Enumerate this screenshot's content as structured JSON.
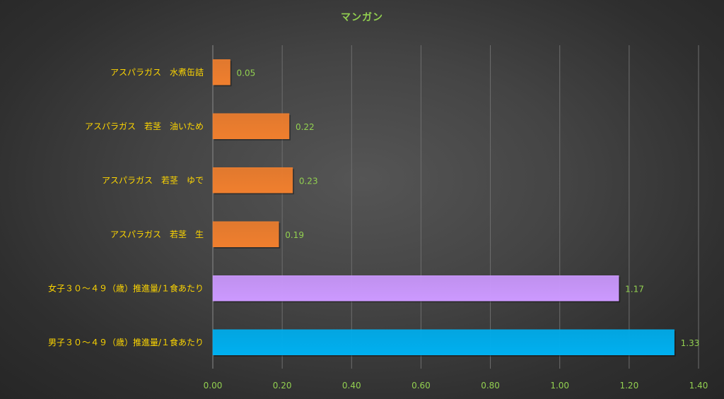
{
  "chart_data": {
    "type": "bar",
    "orientation": "horizontal",
    "title": "マンガン",
    "categories": [
      "アスパラガス　水煮缶詰",
      "アスパラガス　若茎　油いため",
      "アスパラガス　若茎　ゆで",
      "アスパラガス　若茎　生",
      "女子３０～４９（歳）推進量/１食あたり",
      "男子３０～４９（歳）推進量/１食あたり"
    ],
    "values": [
      0.05,
      0.22,
      0.23,
      0.19,
      1.17,
      1.33
    ],
    "value_labels": [
      "0.05",
      "0.22",
      "0.23",
      "0.19",
      "1.17",
      "1.33"
    ],
    "bar_colors": [
      "#f07f2e",
      "#f07f2e",
      "#f07f2e",
      "#f07f2e",
      "#cc99ff",
      "#00b0f0"
    ],
    "xlim": [
      0,
      1.4
    ],
    "x_ticks": [
      "0.00",
      "0.20",
      "0.40",
      "0.60",
      "0.80",
      "1.00",
      "1.20",
      "1.40"
    ],
    "grid": "vertical",
    "legend": "none",
    "colors": {
      "title": "#92d050",
      "category_labels": "#ffd700",
      "tick_labels": "#92d050",
      "value_labels": "#92d050",
      "gridlines": "#6e6e6e"
    }
  }
}
